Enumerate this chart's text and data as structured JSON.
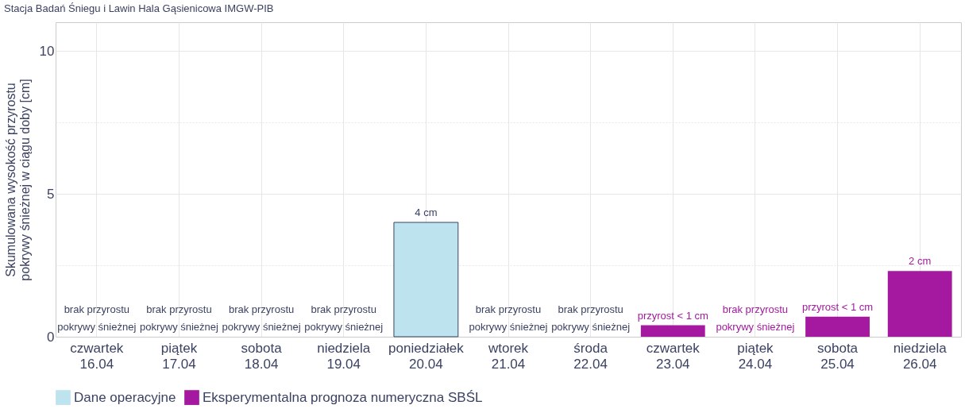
{
  "chart_data": {
    "type": "bar",
    "title": "Stacja Badań Śniegu i Lawin Hala Gąsienicowa IMGW-PIB",
    "ylabel": "Skumulowana wysokość przyrostu\npokrywy śnieżnej w ciągu doby [cm]",
    "categories": [
      "czwartek\n16.04",
      "piątek\n17.04",
      "sobota\n18.04",
      "niedziela\n19.04",
      "poniedziałek\n20.04",
      "wtorek\n21.04",
      "środa\n22.04",
      "czwartek\n23.04",
      "piątek\n24.04",
      "sobota\n25.04",
      "niedziela\n26.04"
    ],
    "series": [
      {
        "name": "Dane operacyjne",
        "color": "#bde3ef",
        "values": [
          0,
          0,
          0,
          0,
          4,
          0,
          0,
          null,
          null,
          null,
          null
        ],
        "value_labels": [
          "brak przyrostu\npokrywy śnieżnej",
          "brak przyrostu\npokrywy śnieżnej",
          "brak przyrostu\npokrywy śnieżnej",
          "brak przyrostu\npokrywy śnieżnej",
          "4 cm",
          "brak przyrostu\npokrywy śnieżnej",
          "brak przyrostu\npokrywy śnieżnej",
          null,
          null,
          null,
          null
        ]
      },
      {
        "name": "Eksperymentalna prognoza numeryczna SBŚL",
        "color": "#a4199f",
        "values": [
          null,
          null,
          null,
          null,
          null,
          null,
          null,
          0.4,
          0,
          0.7,
          2.3
        ],
        "value_labels": [
          null,
          null,
          null,
          null,
          null,
          null,
          null,
          "przyrost < 1 cm",
          "brak przyrostu\npokrywy śnieżnej",
          "przyrost < 1 cm",
          "2 cm"
        ]
      }
    ],
    "ylim": [
      0,
      11
    ],
    "yticks": [
      0,
      {
        "value": 2.5,
        "label": null
      },
      5,
      {
        "value": 7.5,
        "label": null
      },
      10
    ],
    "grid": true,
    "legend": "bottom"
  }
}
